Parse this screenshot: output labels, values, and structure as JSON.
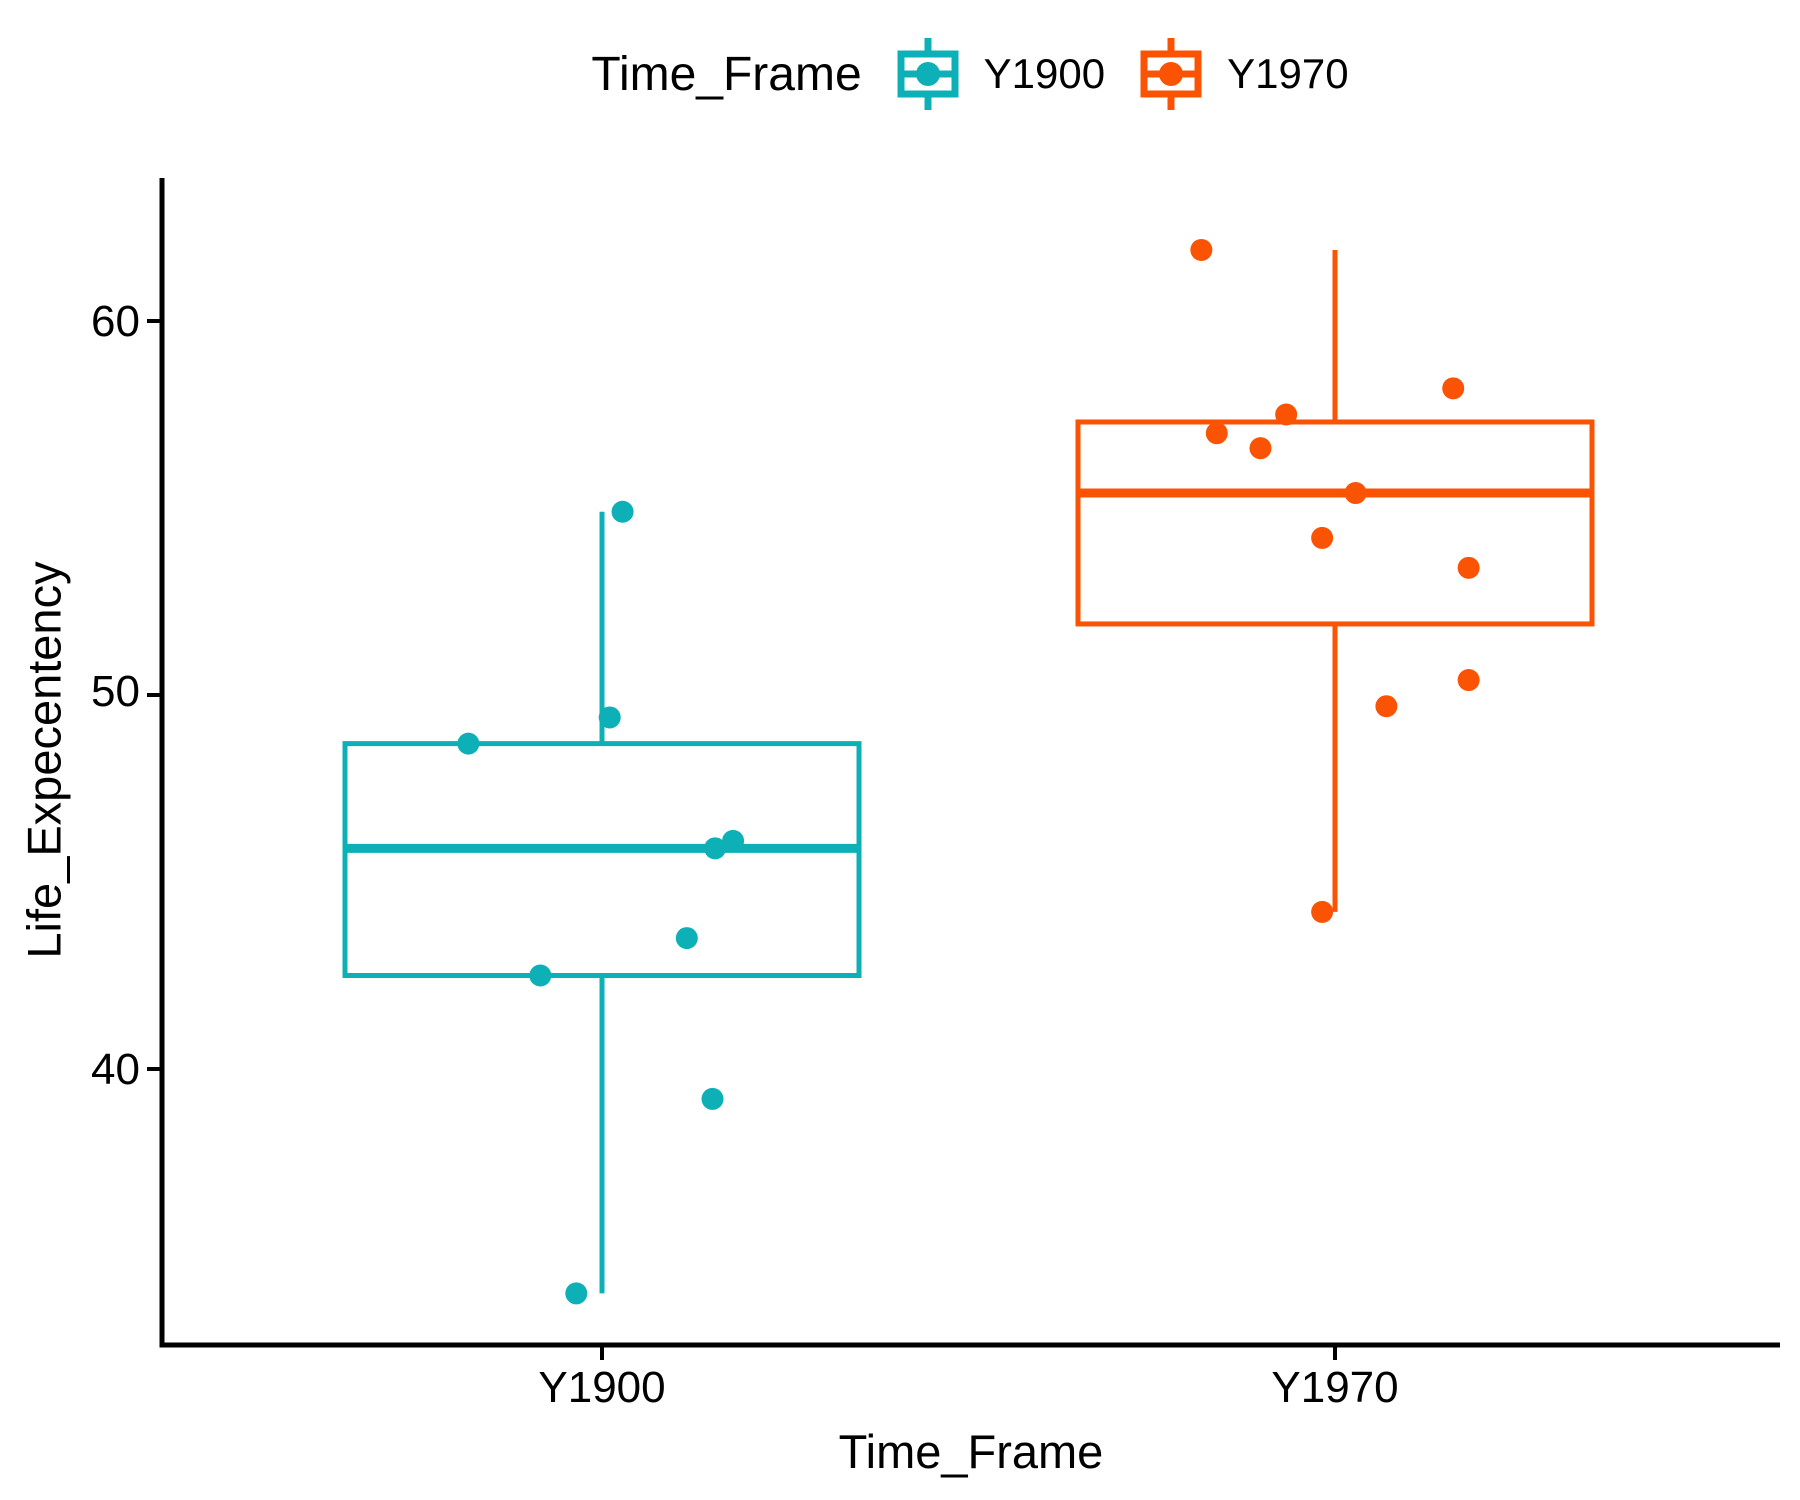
{
  "legend": {
    "title": "Time_Frame",
    "entries": [
      {
        "label": "Y1900",
        "color": "#0db0b7"
      },
      {
        "label": "Y1970",
        "color": "#fb5304"
      }
    ]
  },
  "axes": {
    "x_label": "Time_Frame",
    "y_label": "Life_Expecentency",
    "y_tick_labels": [
      "60",
      "50",
      "40"
    ],
    "x_tick_labels": [
      "Y1900",
      "Y1970"
    ]
  },
  "chart_data": {
    "type": "boxplot",
    "orientation": "vertical",
    "title": "",
    "xlabel": "Time_Frame",
    "ylabel": "Life_Expecentency",
    "categories": [
      "Y1900",
      "Y1970"
    ],
    "y_ticks": [
      40,
      50,
      60
    ],
    "ylim": [
      32.6,
      63.8
    ],
    "grid": false,
    "legend_position": "top",
    "groups": [
      {
        "name": "Y1900",
        "color": "#0db0b7",
        "box": {
          "q1": 42.5,
          "median": 45.9,
          "q3": 48.7,
          "whisker_low": 34.0,
          "whisker_high": 54.9
        },
        "points": [
          {
            "v": 54.9,
            "j": 0.08
          },
          {
            "v": 49.4,
            "j": 0.03
          },
          {
            "v": 48.7,
            "j": -0.52
          },
          {
            "v": 46.1,
            "j": 0.51
          },
          {
            "v": 45.9,
            "j": 0.44
          },
          {
            "v": 43.5,
            "j": 0.33
          },
          {
            "v": 42.5,
            "j": -0.24
          },
          {
            "v": 39.2,
            "j": 0.43
          },
          {
            "v": 34.0,
            "j": -0.1
          }
        ]
      },
      {
        "name": "Y1970",
        "color": "#fb5304",
        "box": {
          "q1": 51.9,
          "median": 55.4,
          "q3": 57.3,
          "whisker_low": 44.2,
          "whisker_high": 61.9
        },
        "points": [
          {
            "v": 61.9,
            "j": -0.52
          },
          {
            "v": 58.2,
            "j": 0.46
          },
          {
            "v": 57.5,
            "j": -0.19
          },
          {
            "v": 57.0,
            "j": -0.46
          },
          {
            "v": 56.6,
            "j": -0.29
          },
          {
            "v": 55.4,
            "j": 0.08
          },
          {
            "v": 54.2,
            "j": -0.05
          },
          {
            "v": 53.4,
            "j": 0.52
          },
          {
            "v": 50.4,
            "j": 0.52
          },
          {
            "v": 49.7,
            "j": 0.2
          },
          {
            "v": 44.2,
            "j": -0.05
          }
        ]
      }
    ]
  }
}
